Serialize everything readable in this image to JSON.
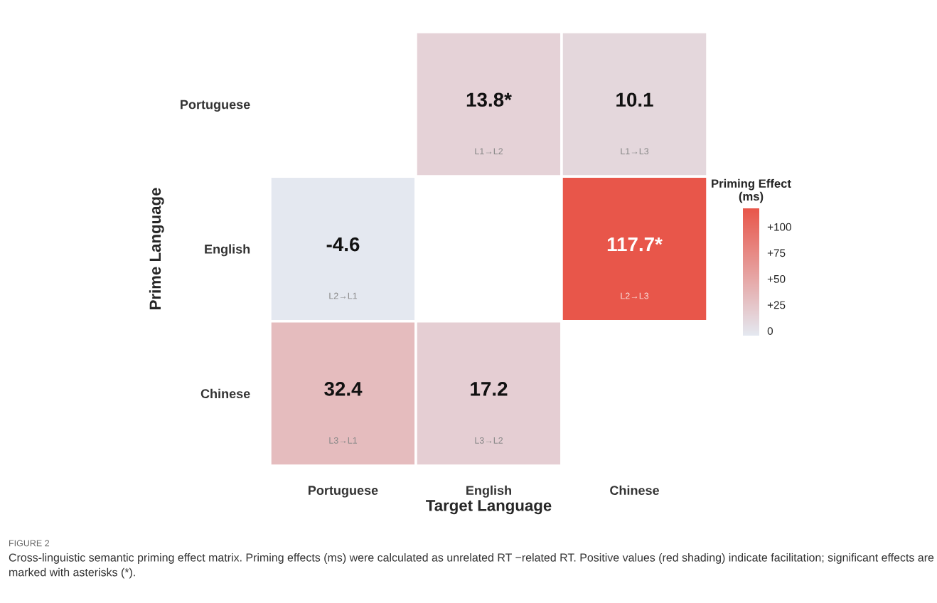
{
  "chart_data": {
    "type": "heatmap",
    "xlabel": "Target Language",
    "ylabel": "Prime Language",
    "clabel": "Priming Effect\n(ms)",
    "categories": [
      "Portuguese",
      "English",
      "Chinese"
    ],
    "y_categories": [
      "Portuguese",
      "English",
      "Chinese"
    ],
    "cells": [
      [
        null,
        13.8,
        10.1
      ],
      [
        -4.6,
        null,
        117.7
      ],
      [
        32.4,
        17.2,
        null
      ]
    ],
    "cell_labels": [
      [
        null,
        "13.8*\nL1→L2",
        "10.1\nL1→L3"
      ],
      [
        "-4.6\nL2→L1",
        null,
        "117.7*\nL2→L3"
      ],
      [
        "32.4\nL3→L1",
        "17.2\nL3→L2",
        null
      ]
    ],
    "colors": [
      "#e4e8f0",
      "#e8564a"
    ],
    "clim": [
      -4.6,
      117.7
    ],
    "cticks": [
      0,
      {
        "value": 25,
        "label": "+25"
      },
      {
        "value": 50,
        "label": "+50"
      },
      {
        "value": 75,
        "label": "+75"
      },
      {
        "value": 100,
        "label": "+100"
      }
    ],
    "annotations": [
      "FIGURE 2",
      "Cross-linguistic semantic priming effect matrix. Priming effects (ms) were calculated as unrelated RT −related RT. Positive values (red shading) indicate facilitation; significant effects are marked with asterisks (*)."
    ]
  }
}
